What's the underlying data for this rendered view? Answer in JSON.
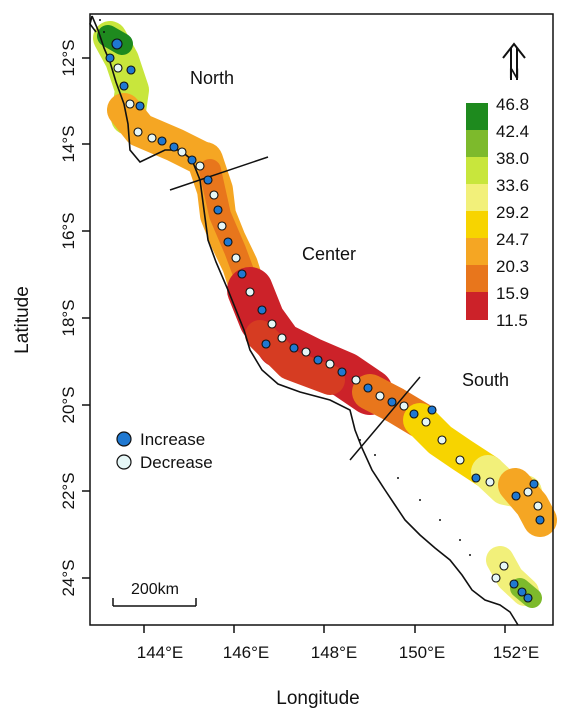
{
  "axes": {
    "xlabel": "Longitude",
    "ylabel": "Latitude",
    "xticks": [
      "144°E",
      "146°E",
      "148°E",
      "150°E",
      "152°E"
    ],
    "yticks": [
      "12°S",
      "14°S",
      "16°S",
      "18°S",
      "20°S",
      "22°S",
      "24°S"
    ]
  },
  "regions": [
    "North",
    "Center",
    "South"
  ],
  "north_arrow": {
    "label": "N"
  },
  "scale_bar": {
    "label": "200km"
  },
  "legend": {
    "items": [
      {
        "label": "Increase",
        "color": "#1f78d1"
      },
      {
        "label": "Decrease",
        "color": "#e6f7f7"
      }
    ]
  },
  "colorbar": {
    "breaks": [
      "46.8",
      "42.4",
      "38.0",
      "33.6",
      "29.2",
      "24.7",
      "20.3",
      "15.9",
      "11.5"
    ],
    "colors": [
      "#1e8a1e",
      "#7dba2c",
      "#c8e63c",
      "#f2f07a",
      "#f7d400",
      "#f5a623",
      "#e8761c",
      "#d63c22",
      "#cc2229"
    ]
  },
  "colors": {
    "increase": "#1f78d1",
    "decrease": "#e6f7f7"
  }
}
